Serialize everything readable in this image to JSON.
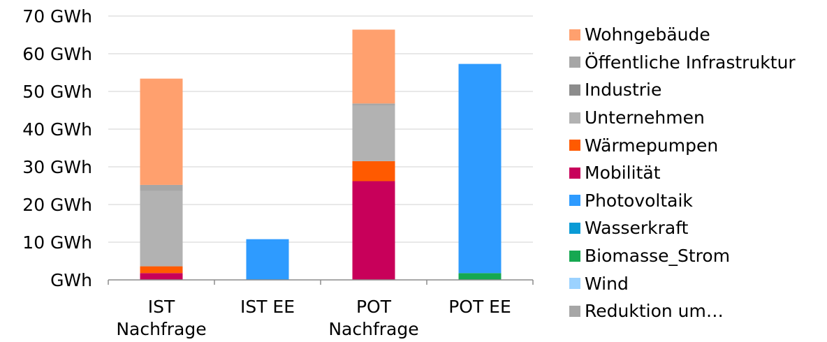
{
  "chart_data": {
    "type": "bar",
    "stacked": true,
    "categories": [
      "IST\nNachfrage",
      "IST EE",
      "POT\nNachfrage",
      "POT EE"
    ],
    "y_tick_labels": [
      "GWh",
      "10 GWh",
      "20 GWh",
      "30 GWh",
      "40 GWh",
      "50 GWh",
      "60 GWh",
      "70 GWh"
    ],
    "y_ticks": [
      0,
      10,
      20,
      30,
      40,
      50,
      60,
      70
    ],
    "ylim": [
      0,
      70
    ],
    "grid": true,
    "legend_position": "right",
    "series": [
      {
        "name": "Biomasse_Strom",
        "color": "#16a851",
        "values": [
          0,
          0,
          0,
          1.8
        ]
      },
      {
        "name": "Mobilität",
        "color": "#c8005a",
        "values": [
          1.8,
          0,
          26.2,
          0
        ]
      },
      {
        "name": "Wärmepumpen",
        "color": "#ff5a00",
        "values": [
          1.8,
          0,
          5.3,
          0
        ]
      },
      {
        "name": "Unternehmen",
        "color": "#b2b2b2",
        "values": [
          20.0,
          0,
          14.8,
          0
        ]
      },
      {
        "name": "Öffentliche Infrastruktur",
        "color": "#a6a6a6",
        "values": [
          1.6,
          0,
          0.5,
          0
        ]
      },
      {
        "name": "Wohngebäude",
        "color": "#ffa06e",
        "values": [
          28.2,
          0,
          19.6,
          0
        ]
      },
      {
        "name": "Photovoltaik",
        "color": "#2e9bff",
        "values": [
          0,
          10.8,
          0,
          55.5
        ]
      }
    ]
  },
  "legend": [
    {
      "label": "Wohngebäude",
      "color": "#ffa06e"
    },
    {
      "label": "Öffentliche Infrastruktur",
      "color": "#a6a6a6"
    },
    {
      "label": "Industrie",
      "color": "#8c8c8c"
    },
    {
      "label": "Unternehmen",
      "color": "#b2b2b2"
    },
    {
      "label": "Wärmepumpen",
      "color": "#ff5a00"
    },
    {
      "label": "Mobilität",
      "color": "#c8005a"
    },
    {
      "label": "Photovoltaik",
      "color": "#2e9bff"
    },
    {
      "label": "Wasserkraft",
      "color": "#0a9bd6"
    },
    {
      "label": "Biomasse_Strom",
      "color": "#16a851"
    },
    {
      "label": "Wind",
      "color": "#9bd2ff"
    },
    {
      "label": "Reduktion um…",
      "color": "#a6a6a6"
    }
  ]
}
